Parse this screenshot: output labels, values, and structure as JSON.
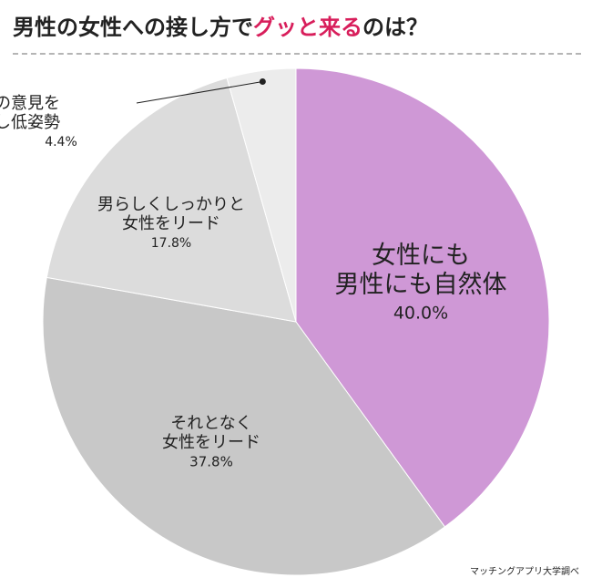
{
  "title": {
    "main": "男性の女性への接し方で",
    "accent": "グッと来る",
    "tail": "のは？"
  },
  "source": "マッチングアプリ大学調べ",
  "colors": {
    "accent": "#d81e5b"
  },
  "chart_data": {
    "type": "pie",
    "unit": "%",
    "slices": [
      {
        "label": [
          "女性にも",
          "男性にも自然体"
        ],
        "value": 40.0,
        "display": "40.0%",
        "color": "#cf98d6"
      },
      {
        "label": [
          "それとなく",
          "女性をリード"
        ],
        "value": 37.8,
        "display": "37.8%",
        "color": "#c8c8c8"
      },
      {
        "label": [
          "男らしくしっかりと",
          "女性をリード"
        ],
        "value": 17.8,
        "display": "17.8%",
        "color": "#dcdcdc"
      },
      {
        "label": [
          "女性の意見を",
          "優先し低姿勢"
        ],
        "value": 4.4,
        "display": "4.4%",
        "color": "#ececec"
      }
    ]
  }
}
